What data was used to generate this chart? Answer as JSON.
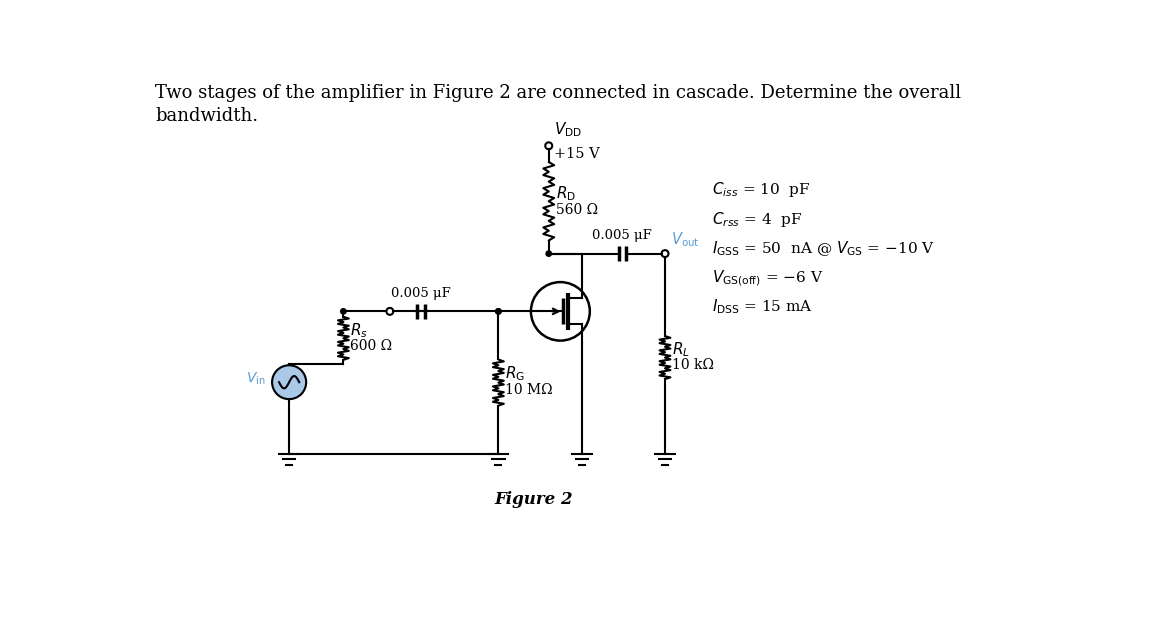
{
  "bg_color": "#ffffff",
  "text_color": "#000000",
  "blue_color": "#5b9bd5",
  "lw": 1.5,
  "title_line1": "Two stages of the amplifier in Figure 2 are connected in cascade. Determine the overall",
  "title_line2": "bandwidth.",
  "figure_label": "Figure 2",
  "VDD_label": "$V_{\\mathrm{DD}}$",
  "VDD_val": "+15 V",
  "RD_label": "$R_{\\mathrm{D}}$",
  "RD_val": "560 Ω",
  "RS_label": "$R_s$",
  "RS_val": "600 Ω",
  "RG_label": "$R_{\\mathrm{G}}$",
  "RG_val": "10 MΩ",
  "RL_label": "$R_L$",
  "RL_val": "10 kΩ",
  "C1_val": "0.005 μF",
  "C2_val": "0.005 μF",
  "Vout_label": "$V_{\\mathrm{out}}$",
  "Vin_label": "$V_{\\mathrm{in}}$",
  "param_Ciss": "$C_{iss}$ = 10  pF",
  "param_Crss": "$C_{rss}$ = 4  pF",
  "param_IGSS": "$I_{\\mathrm{GSS}}$ = 50  nA @ $V_{\\mathrm{GS}}$ = −10 V",
  "param_VGSoff": "$V_{\\mathrm{GS(off)}}$ = −6 V",
  "param_IDSS": "$I_{\\mathrm{DSS}}$ = 15 mA"
}
